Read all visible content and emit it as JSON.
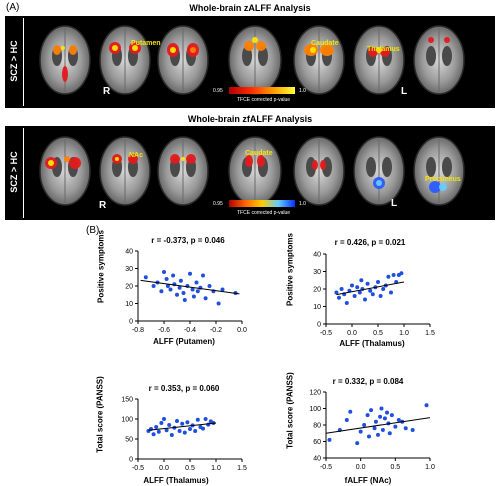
{
  "panel_a": {
    "label": "(A)",
    "top": {
      "title": "Whole-brain zALFF Analysis",
      "side_label": "SCZ > HC",
      "left_marker": "R",
      "right_marker": "L",
      "annotations": [
        "Putamen",
        "Caudate",
        "Thalamus"
      ],
      "colorbar": {
        "min": "0.95",
        "max": "1.0",
        "caption": "TFCE corrected p-value",
        "colors": [
          "#b30000",
          "#ff2a00",
          "#ff9900",
          "#ffff33"
        ]
      }
    },
    "bottom": {
      "title": "Whole-brain zfALFF Analysis",
      "side_label": "SCZ > HC",
      "left_marker": "R",
      "right_marker": "L",
      "annotations": [
        "NAc",
        "Caudate",
        "Precuneus"
      ],
      "colorbar": {
        "min": "0.95",
        "max": "1.0",
        "caption": "TFCE corrected p-value",
        "colors": [
          "#b30000",
          "#ff6600",
          "#ffcc00",
          "#66ccff",
          "#0033ff"
        ]
      }
    }
  },
  "panel_b": {
    "label": "(B)",
    "point_color": "#1f4fe0"
  },
  "chart_data": [
    {
      "type": "scatter",
      "title": "r = -0.373, p = 0.046",
      "xlabel": "ALFF (Putamen)",
      "ylabel": "Positive symptoms",
      "xlim": [
        -0.8,
        0.0
      ],
      "ylim": [
        0,
        40
      ],
      "xticks": [
        "-0.8",
        "-0.6",
        "-0.4",
        "-0.2",
        "0.0"
      ],
      "yticks": [
        "0",
        "10",
        "20",
        "30",
        "40"
      ],
      "x": [
        -0.74,
        -0.68,
        -0.65,
        -0.62,
        -0.6,
        -0.58,
        -0.57,
        -0.55,
        -0.53,
        -0.52,
        -0.5,
        -0.48,
        -0.47,
        -0.45,
        -0.44,
        -0.42,
        -0.4,
        -0.38,
        -0.37,
        -0.35,
        -0.34,
        -0.32,
        -0.3,
        -0.28,
        -0.25,
        -0.22,
        -0.18,
        -0.15,
        -0.05
      ],
      "y": [
        25,
        20,
        22,
        17,
        28,
        24,
        20,
        18,
        26,
        21,
        15,
        19,
        23,
        16,
        12,
        20,
        27,
        18,
        14,
        22,
        17,
        19,
        26,
        13,
        20,
        17,
        10,
        18,
        16
      ],
      "fit": {
        "x": [
          -0.78,
          -0.02
        ],
        "y": [
          23.2,
          15.5
        ]
      }
    },
    {
      "type": "scatter",
      "title": "r = 0.426, p = 0.021",
      "xlabel": "ALFF (Thalamus)",
      "ylabel": "Positive symptoms",
      "xlim": [
        -0.5,
        1.5
      ],
      "ylim": [
        0,
        40
      ],
      "xticks": [
        "-0.5",
        "0.0",
        "0.5",
        "1.0",
        "1.5"
      ],
      "yticks": [
        "0",
        "10",
        "20",
        "30",
        "40"
      ],
      "x": [
        -0.3,
        -0.25,
        -0.2,
        -0.15,
        -0.1,
        -0.05,
        0.0,
        0.05,
        0.1,
        0.15,
        0.18,
        0.2,
        0.25,
        0.3,
        0.35,
        0.4,
        0.45,
        0.5,
        0.55,
        0.6,
        0.65,
        0.7,
        0.75,
        0.8,
        0.85,
        0.9,
        0.95
      ],
      "y": [
        18,
        15,
        20,
        17,
        12,
        19,
        22,
        16,
        21,
        18,
        25,
        20,
        14,
        23,
        19,
        17,
        21,
        24,
        16,
        20,
        22,
        27,
        18,
        28,
        24,
        28,
        29
      ],
      "fit": {
        "x": [
          -0.3,
          1.0
        ],
        "y": [
          16.8,
          24.0
        ]
      }
    },
    {
      "type": "scatter",
      "title": "r = 0.353, p = 0.060",
      "xlabel": "ALFF (Thalamus)",
      "ylabel": "Total score (PANSS)",
      "xlim": [
        -0.5,
        1.5
      ],
      "ylim": [
        0,
        150
      ],
      "xticks": [
        "-0.5",
        "0.0",
        "0.5",
        "1.0",
        "1.5"
      ],
      "yticks": [
        "0",
        "50",
        "100",
        "150"
      ],
      "x": [
        -0.3,
        -0.25,
        -0.2,
        -0.15,
        -0.1,
        -0.05,
        0.0,
        0.05,
        0.1,
        0.15,
        0.2,
        0.25,
        0.3,
        0.35,
        0.4,
        0.45,
        0.5,
        0.55,
        0.6,
        0.65,
        0.7,
        0.75,
        0.8,
        0.85,
        0.9,
        0.95
      ],
      "y": [
        70,
        75,
        62,
        80,
        68,
        90,
        100,
        72,
        85,
        60,
        78,
        95,
        70,
        88,
        66,
        92,
        75,
        84,
        70,
        98,
        80,
        76,
        100,
        86,
        94,
        90
      ],
      "fit": {
        "x": [
          -0.3,
          1.0
        ],
        "y": [
          72,
          90
        ]
      }
    },
    {
      "type": "scatter",
      "title": "r = 0.332, p = 0.084",
      "xlabel": "fALFF (NAc)",
      "ylabel": "Total score (PANSS)",
      "xlim": [
        -0.5,
        1.0
      ],
      "ylim": [
        40,
        120
      ],
      "xticks": [
        "-0.5",
        "0.0",
        "0.5",
        "1.0"
      ],
      "yticks": [
        "40",
        "60",
        "80",
        "100",
        "120"
      ],
      "x": [
        -0.45,
        -0.3,
        -0.2,
        -0.15,
        -0.05,
        0.0,
        0.05,
        0.1,
        0.12,
        0.15,
        0.2,
        0.22,
        0.25,
        0.28,
        0.3,
        0.32,
        0.35,
        0.38,
        0.4,
        0.42,
        0.45,
        0.5,
        0.55,
        0.6,
        0.65,
        0.75,
        0.95
      ],
      "y": [
        62,
        74,
        86,
        96,
        58,
        72,
        80,
        92,
        66,
        98,
        76,
        84,
        68,
        90,
        100,
        74,
        88,
        95,
        82,
        70,
        92,
        78,
        86,
        84,
        76,
        74,
        104
      ],
      "fit": {
        "x": [
          -0.5,
          1.0
        ],
        "y": [
          70,
          89
        ]
      }
    }
  ]
}
